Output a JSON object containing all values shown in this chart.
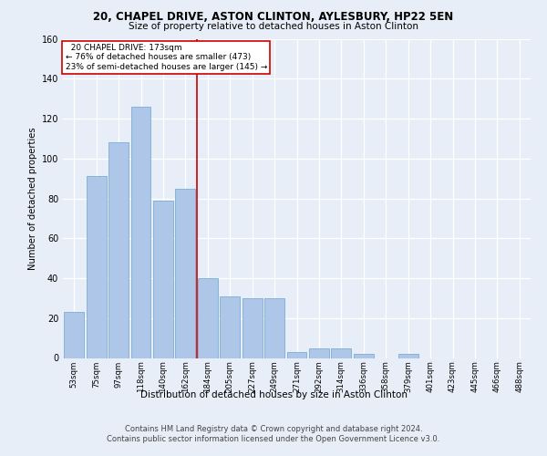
{
  "title1": "20, CHAPEL DRIVE, ASTON CLINTON, AYLESBURY, HP22 5EN",
  "title2": "Size of property relative to detached houses in Aston Clinton",
  "xlabel": "Distribution of detached houses by size in Aston Clinton",
  "ylabel": "Number of detached properties",
  "categories": [
    "53sqm",
    "75sqm",
    "97sqm",
    "118sqm",
    "140sqm",
    "162sqm",
    "184sqm",
    "205sqm",
    "227sqm",
    "249sqm",
    "271sqm",
    "292sqm",
    "314sqm",
    "336sqm",
    "358sqm",
    "379sqm",
    "401sqm",
    "423sqm",
    "445sqm",
    "466sqm",
    "488sqm"
  ],
  "values": [
    23,
    91,
    108,
    126,
    79,
    85,
    40,
    31,
    30,
    30,
    3,
    5,
    5,
    2,
    0,
    2,
    0,
    0,
    0,
    0,
    0
  ],
  "bar_color": "#aec6e8",
  "bar_edge_color": "#7aadd4",
  "marker_label": "20 CHAPEL DRIVE: 173sqm",
  "pct_smaller": "76% of detached houses are smaller (473)",
  "pct_larger": "23% of semi-detached houses are larger (145)",
  "annotation_box_edge": "#cc0000",
  "vline_color": "#cc0000",
  "vline_x": 5.5,
  "ylim": [
    0,
    160
  ],
  "yticks": [
    0,
    20,
    40,
    60,
    80,
    100,
    120,
    140,
    160
  ],
  "bg_color": "#e8eef8",
  "footer1": "Contains HM Land Registry data © Crown copyright and database right 2024.",
  "footer2": "Contains public sector information licensed under the Open Government Licence v3.0."
}
